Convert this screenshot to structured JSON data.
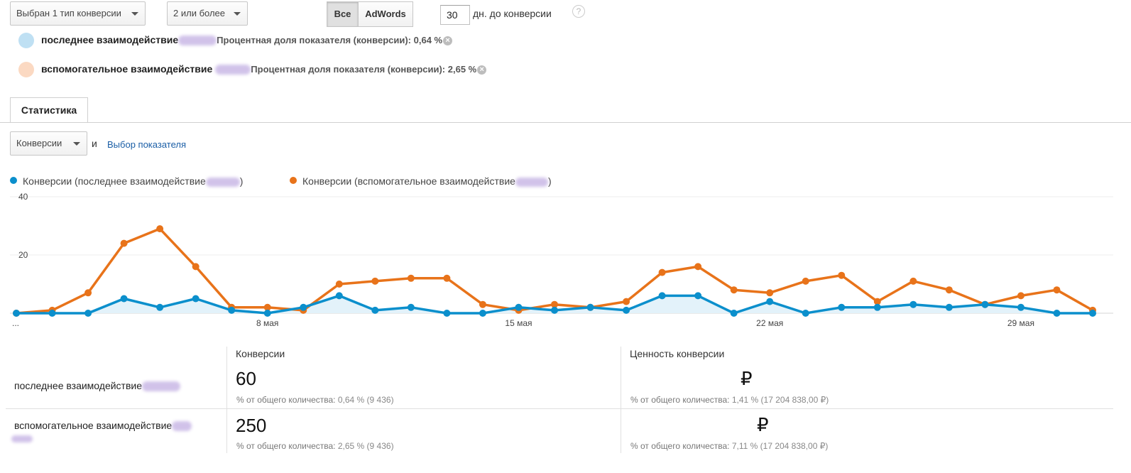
{
  "controls": {
    "conversion_type": "Выбран 1 тип конверсии",
    "interactions": "2 или более",
    "segment_all": "Все",
    "segment_adwords": "AdWords",
    "days_value": "30",
    "days_label": "дн. до конверсии",
    "help": "?"
  },
  "segments": [
    {
      "name": "последнее взаимодействие",
      "metric": "Процентная доля показателя (конверсии): 0,64 %",
      "color": "#bfe0f3"
    },
    {
      "name": "вспомогательное взаимодействие",
      "metric": "Процентная доля показателя (конверсии): 2,65 %",
      "color": "#fbd9c2"
    }
  ],
  "tab": {
    "label": "Статистика"
  },
  "metric_selector": {
    "value": "Конверсии",
    "and": "и",
    "link": "Выбор показателя"
  },
  "legend": [
    {
      "label": "Конверсии (последнее взаимодействие",
      "close": ")",
      "color": "#0b8fcc"
    },
    {
      "label": "Конверсии (вспомогательное взаимодействие",
      "close": ")",
      "color": "#e8731a"
    }
  ],
  "chart_data": {
    "type": "line",
    "ylim": [
      0,
      40
    ],
    "yticks": [
      "20",
      "40"
    ],
    "xtick_labels": [
      {
        "index": 0,
        "label": "..."
      },
      {
        "index": 7,
        "label": "8 мая"
      },
      {
        "index": 14,
        "label": "15 мая"
      },
      {
        "index": 21,
        "label": "22 мая"
      },
      {
        "index": 28,
        "label": "29 мая"
      }
    ],
    "series": [
      {
        "name": "Конверсии (последнее взаимодействие)",
        "color": "#0b8fcc",
        "values": [
          0,
          0,
          0,
          5,
          2,
          5,
          1,
          0,
          2,
          6,
          1,
          2,
          0,
          0,
          2,
          1,
          2,
          1,
          6,
          6,
          0,
          4,
          0,
          2,
          2,
          3,
          2,
          3,
          2,
          0,
          0
        ]
      },
      {
        "name": "Конверсии (вспомогательное взаимодействие)",
        "color": "#e8731a",
        "values": [
          0,
          1,
          7,
          24,
          29,
          16,
          2,
          2,
          1,
          10,
          11,
          12,
          12,
          3,
          1,
          3,
          2,
          4,
          14,
          16,
          8,
          7,
          11,
          13,
          4,
          11,
          8,
          3,
          6,
          8,
          1
        ]
      }
    ]
  },
  "stats": {
    "col_conversions": "Конверсии",
    "col_value": "Ценность конверсии",
    "rows": [
      {
        "label": "последнее взаимодействие",
        "conversions": "60",
        "conv_sub_prefix": "% от общего количества:",
        "conv_sub_value": "0,64 % (9 436)",
        "value": "₽",
        "value_sub_prefix": "% от общего количества:",
        "value_sub_value": "1,41 % (17 204 838,00 ₽)"
      },
      {
        "label": "вспомогательное взаимодействие",
        "conversions": "250",
        "conv_sub_prefix": "% от общего количества:",
        "conv_sub_value": "2,65 % (9 436)",
        "value": "₽",
        "value_sub_prefix": "% от общего количества:",
        "value_sub_value": "7,11 % (17 204 838,00 ₽)"
      }
    ]
  }
}
